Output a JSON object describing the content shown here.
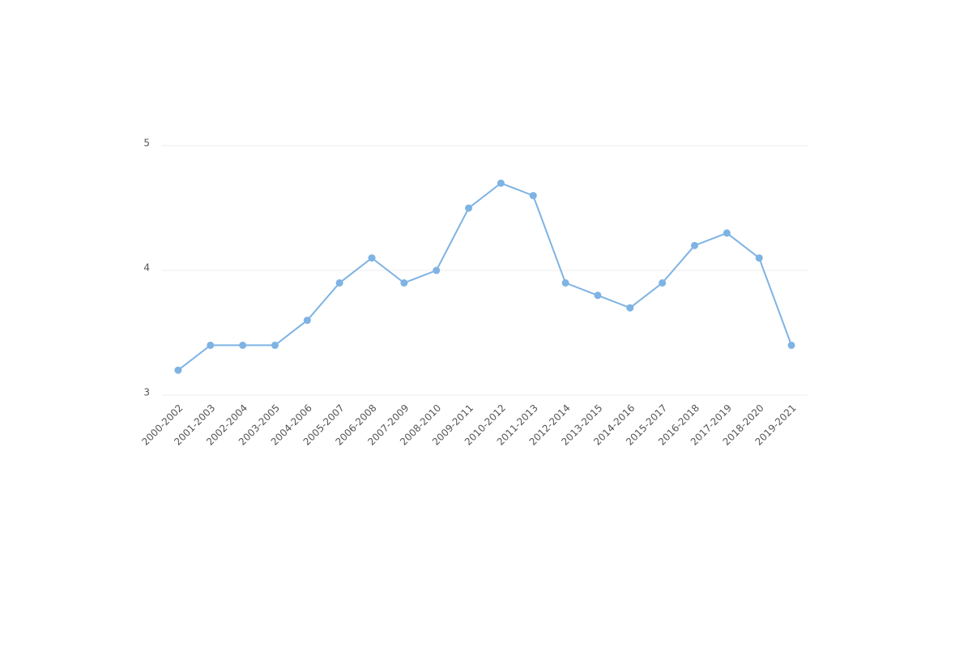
{
  "chart_data": {
    "type": "line",
    "categories": [
      "2000-2002",
      "2001-2003",
      "2002-2004",
      "2003-2005",
      "2004-2006",
      "2005-2007",
      "2006-2008",
      "2007-2009",
      "2008-2010",
      "2009-2011",
      "2010-2012",
      "2011-2013",
      "2012-2014",
      "2013-2015",
      "2014-2016",
      "2015-2017",
      "2016-2018",
      "2017-2019",
      "2018-2020",
      "2019-2021"
    ],
    "values": [
      3.2,
      3.4,
      3.4,
      3.4,
      3.6,
      3.9,
      4.1,
      3.9,
      4.0,
      4.5,
      4.7,
      4.6,
      3.9,
      3.8,
      3.7,
      3.9,
      4.2,
      4.3,
      4.1,
      3.4
    ],
    "color": "#7eb3e3",
    "ylim": [
      3,
      5
    ],
    "yticks": [
      3,
      4,
      5
    ],
    "grid": true
  }
}
